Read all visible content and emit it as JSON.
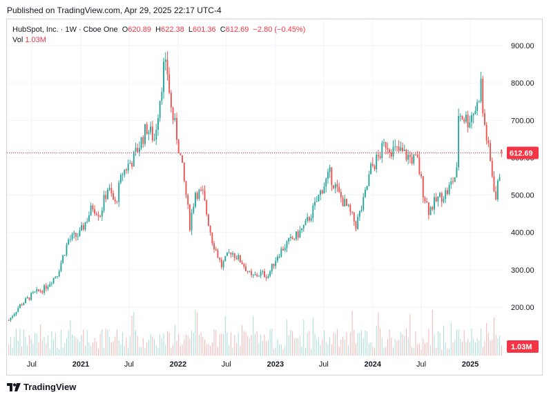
{
  "header": {
    "published": "Published on TradingView.com, Apr 29, 2025 22:17 UTC-4"
  },
  "legend": {
    "symbol": "HubSpot, Inc.",
    "interval": "1W",
    "exchange": "Cboe One",
    "o_label": "O",
    "o_value": "620.89",
    "h_label": "H",
    "h_value": "622.38",
    "l_label": "L",
    "l_value": "601.36",
    "c_label": "C",
    "c_value": "612.69",
    "change": "−2.80 (−0.45%)",
    "vol_label": "Vol",
    "vol_value": "1.03M"
  },
  "footer": {
    "brand": "TradingView"
  },
  "colors": {
    "up": "#26a69a",
    "down": "#ef5350",
    "price_tag": "#f23645",
    "grid": "#f0f3fa"
  },
  "chart_data": {
    "type": "candlestick",
    "ylim": [
      250,
      905
    ],
    "yticks": [
      "900.00",
      "800.00",
      "700.00",
      "600.00",
      "500.00",
      "400.00",
      "300.00",
      "200.00"
    ],
    "ytick_values": [
      900,
      800,
      700,
      600,
      500,
      400,
      300,
      200
    ],
    "xticks": [
      "Jul",
      "2021",
      "Jul",
      "2022",
      "Jul",
      "2023",
      "Jul",
      "2024",
      "Jul",
      "2025"
    ],
    "xtick_dates": [
      "2020-07-01",
      "2021-01-01",
      "2021-07-01",
      "2022-01-01",
      "2022-07-01",
      "2023-01-01",
      "2023-07-01",
      "2024-01-01",
      "2024-07-01",
      "2025-01-01"
    ],
    "x_range": [
      "2020-03-30",
      "2025-05-05"
    ],
    "last_price": "612.69",
    "last_volume": "1.03M",
    "volume_max_millions": 6.0,
    "price_path": [
      [
        "2020-04-06",
        165
      ],
      [
        "2020-05-18",
        205
      ],
      [
        "2020-07-06",
        235
      ],
      [
        "2020-08-17",
        250
      ],
      [
        "2020-10-05",
        290
      ],
      [
        "2020-11-16",
        380
      ],
      [
        "2020-12-28",
        395
      ],
      [
        "2021-02-15",
        470
      ],
      [
        "2021-03-15",
        450
      ],
      [
        "2021-04-12",
        520
      ],
      [
        "2021-05-10",
        475
      ],
      [
        "2021-06-07",
        560
      ],
      [
        "2021-07-19",
        600
      ],
      [
        "2021-09-06",
        680
      ],
      [
        "2021-10-04",
        650
      ],
      [
        "2021-11-08",
        840
      ],
      [
        "2021-11-22",
        830
      ],
      [
        "2021-12-06",
        730
      ],
      [
        "2021-12-27",
        660
      ],
      [
        "2022-01-10",
        600
      ],
      [
        "2022-01-31",
        500
      ],
      [
        "2022-02-14",
        420
      ],
      [
        "2022-03-07",
        510
      ],
      [
        "2022-04-04",
        500
      ],
      [
        "2022-05-09",
        380
      ],
      [
        "2022-06-13",
        310
      ],
      [
        "2022-07-18",
        350
      ],
      [
        "2022-08-29",
        320
      ],
      [
        "2022-10-03",
        280
      ],
      [
        "2022-11-07",
        290
      ],
      [
        "2022-12-05",
        285
      ],
      [
        "2023-01-09",
        340
      ],
      [
        "2023-02-13",
        370
      ],
      [
        "2023-03-20",
        390
      ],
      [
        "2023-04-24",
        420
      ],
      [
        "2023-05-29",
        470
      ],
      [
        "2023-06-26",
        520
      ],
      [
        "2023-07-24",
        555
      ],
      [
        "2023-08-28",
        500
      ],
      [
        "2023-10-02",
        460
      ],
      [
        "2023-10-30",
        420
      ],
      [
        "2023-11-27",
        480
      ],
      [
        "2023-12-25",
        570
      ],
      [
        "2024-01-22",
        600
      ],
      [
        "2024-02-19",
        640
      ],
      [
        "2024-03-18",
        620
      ],
      [
        "2024-04-15",
        615
      ],
      [
        "2024-05-20",
        600
      ],
      [
        "2024-06-17",
        590
      ],
      [
        "2024-07-08",
        510
      ],
      [
        "2024-07-29",
        460
      ],
      [
        "2024-09-02",
        490
      ],
      [
        "2024-10-07",
        510
      ],
      [
        "2024-11-11",
        560
      ],
      [
        "2024-11-18",
        720
      ],
      [
        "2024-12-23",
        700
      ],
      [
        "2025-01-27",
        740
      ],
      [
        "2025-02-10",
        800
      ],
      [
        "2025-02-17",
        720
      ],
      [
        "2025-03-10",
        620
      ],
      [
        "2025-04-07",
        490
      ],
      [
        "2025-04-21",
        560
      ],
      [
        "2025-04-28",
        612.69
      ]
    ]
  }
}
